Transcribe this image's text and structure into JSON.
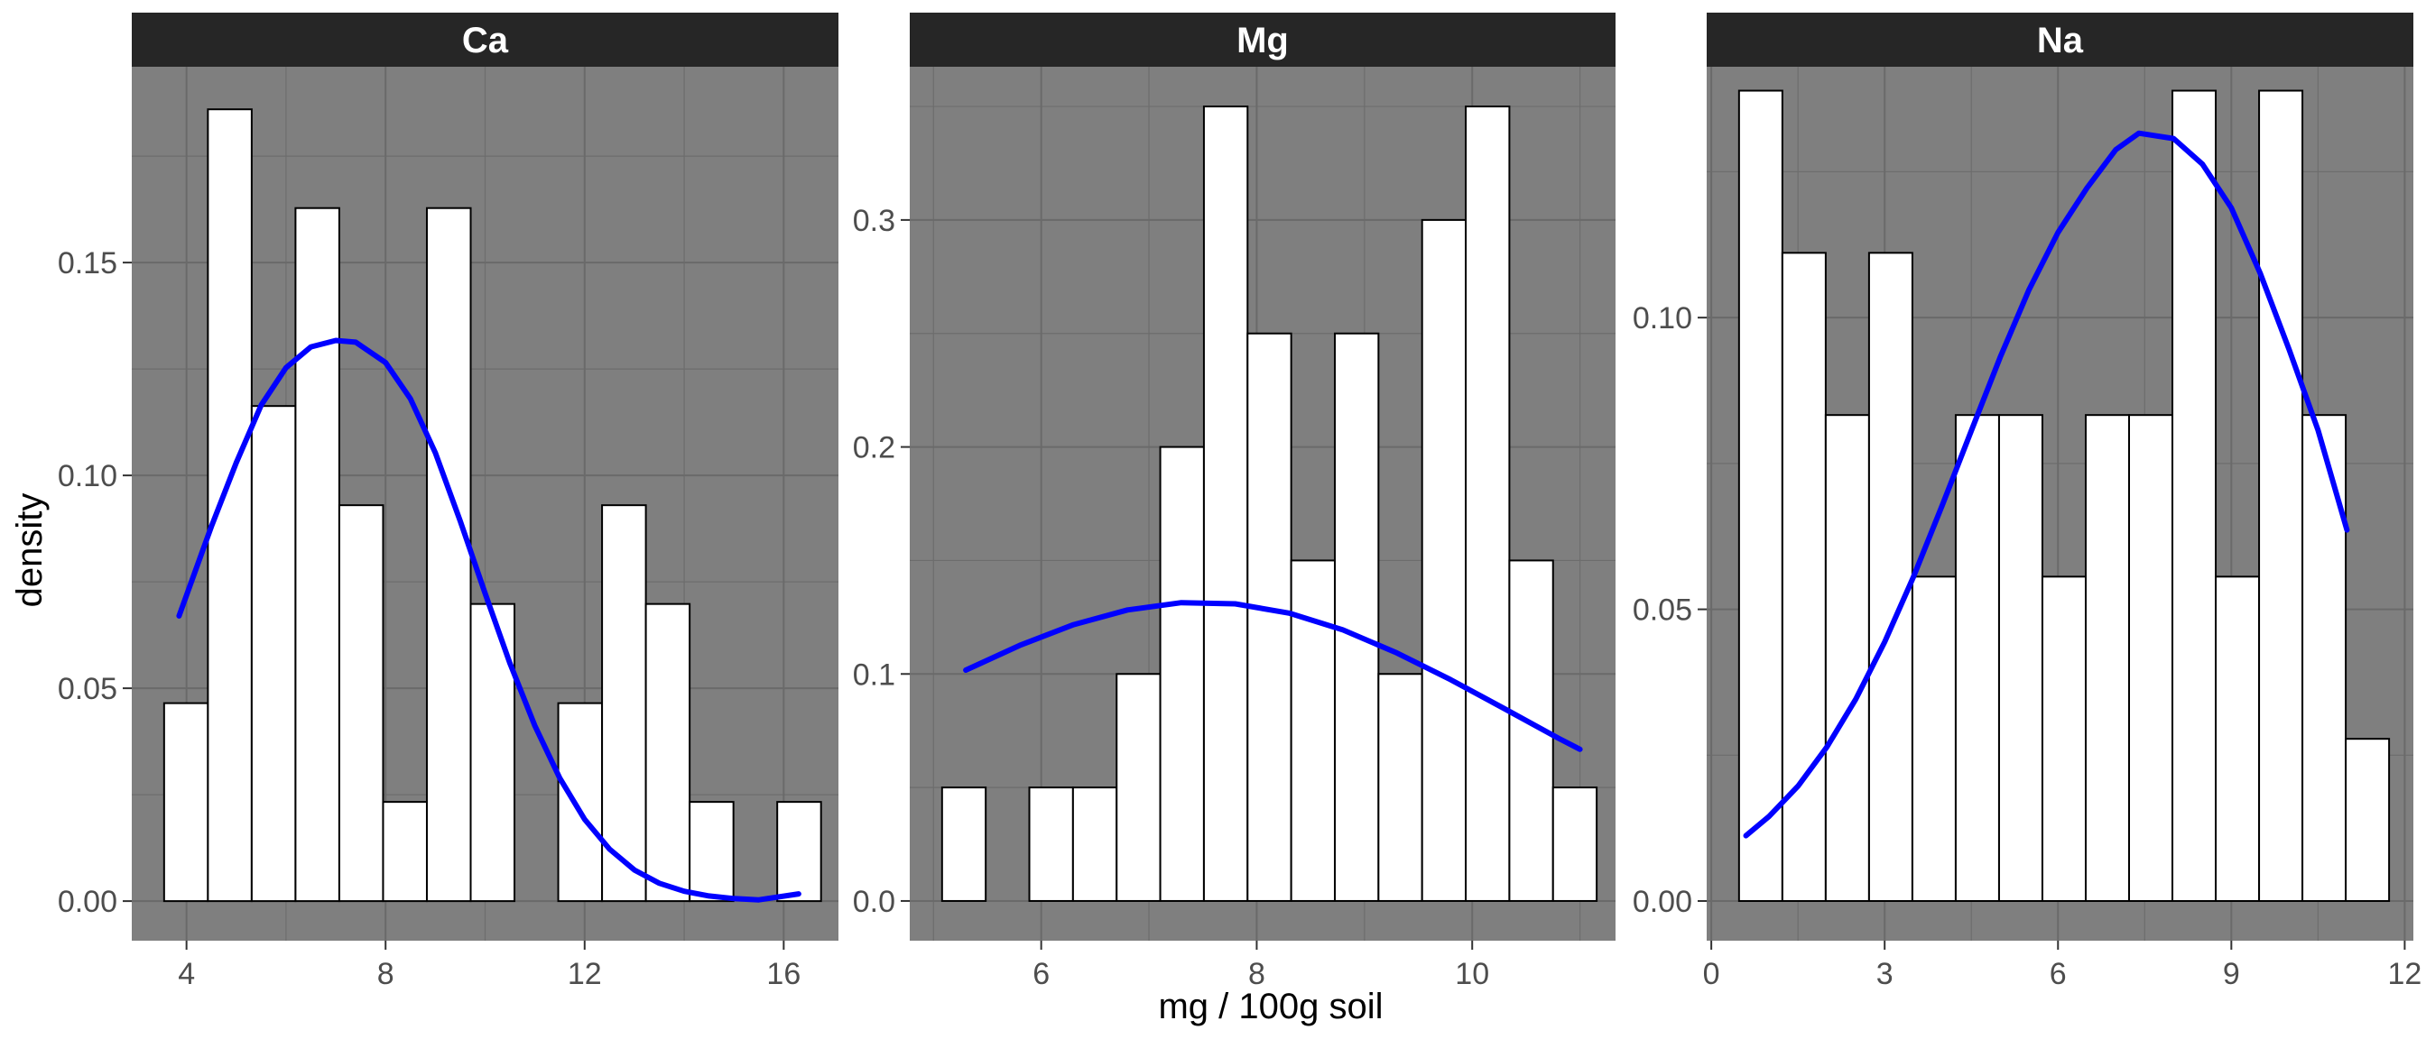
{
  "chart_data": {
    "type": "histogram",
    "facets": [
      {
        "panel": "Ca",
        "xlim": [
          2.9,
          17.1
        ],
        "ylim": [
          -0.0093,
          0.196
        ],
        "x_ticks": [
          4,
          8,
          12,
          16
        ],
        "x_tick_labels": [
          "4",
          "8",
          "12",
          "16"
        ],
        "y_ticks": [
          0,
          0.05,
          0.1,
          0.15
        ],
        "y_tick_labels": [
          "0.00",
          "0.05",
          "0.10",
          "0.15"
        ],
        "bin_edges": [
          3.55,
          4.43,
          5.31,
          6.19,
          7.07,
          7.95,
          8.83,
          9.71,
          10.59,
          11.47,
          12.35,
          13.23,
          14.11,
          14.99,
          15.87,
          16.75
        ],
        "bin_density": [
          0.0465,
          0.186,
          0.1163,
          0.1628,
          0.093,
          0.0233,
          0.1628,
          0.0698,
          0.0,
          0.0465,
          0.093,
          0.0698,
          0.0233,
          0.0,
          0.0233
        ],
        "curve": {
          "x": [
            3.85,
            4.5,
            5.0,
            5.5,
            6.0,
            6.5,
            7.0,
            7.4,
            8.0,
            8.5,
            9.0,
            9.5,
            10.0,
            10.5,
            11.0,
            11.5,
            12.0,
            12.5,
            13.0,
            13.5,
            14.0,
            14.5,
            15.0,
            15.5,
            16.3
          ],
          "y": [
            0.067,
            0.088,
            0.103,
            0.1165,
            0.1253,
            0.1302,
            0.1317,
            0.1313,
            0.1265,
            0.118,
            0.1053,
            0.0893,
            0.0723,
            0.0558,
            0.0412,
            0.0289,
            0.0192,
            0.0122,
            0.0073,
            0.0042,
            0.0023,
            0.0012,
            0.0006,
            0.0003,
            0.0017
          ]
        }
      },
      {
        "panel": "Mg",
        "xlim": [
          4.78,
          11.33
        ],
        "ylim": [
          -0.0175,
          0.3675
        ],
        "x_ticks": [
          6,
          8,
          10
        ],
        "x_tick_labels": [
          "6",
          "8",
          "10"
        ],
        "y_ticks": [
          0,
          0.1,
          0.2,
          0.3
        ],
        "y_tick_labels": [
          "0.0",
          "0.1",
          "0.2",
          "0.3"
        ],
        "bin_edges": [
          5.08,
          5.485,
          5.89,
          6.295,
          6.7,
          7.105,
          7.51,
          7.915,
          8.32,
          8.725,
          9.13,
          9.535,
          9.94,
          10.345,
          10.75,
          11.155
        ],
        "bin_density": [
          0.05,
          0.0,
          0.05,
          0.05,
          0.1,
          0.2,
          0.35,
          0.25,
          0.15,
          0.25,
          0.1,
          0.3,
          0.35,
          0.15,
          0.05
        ],
        "curve": {
          "x": [
            5.3,
            5.8,
            6.3,
            6.8,
            7.3,
            7.8,
            8.3,
            8.8,
            9.3,
            9.8,
            10.3,
            10.8,
            11.0
          ],
          "y": [
            0.1017,
            0.1126,
            0.1217,
            0.1282,
            0.1314,
            0.1309,
            0.1268,
            0.1194,
            0.1093,
            0.0975,
            0.0847,
            0.0717,
            0.0668
          ]
        }
      },
      {
        "panel": "Na",
        "xlim": [
          -0.08,
          12.15
        ],
        "ylim": [
          -0.0068,
          0.143
        ],
        "x_ticks": [
          0,
          3,
          6,
          9,
          12
        ],
        "x_tick_labels": [
          "0",
          "3",
          "6",
          "9",
          "12"
        ],
        "y_ticks": [
          0,
          0.05,
          0.1
        ],
        "y_tick_labels": [
          "0.00",
          "0.05",
          "0.10"
        ],
        "bin_edges": [
          0.48,
          1.23,
          1.98,
          2.73,
          3.48,
          4.23,
          4.98,
          5.73,
          6.48,
          7.23,
          7.98,
          8.73,
          9.48,
          10.23,
          10.98,
          11.73
        ],
        "bin_density": [
          0.1389,
          0.1111,
          0.0833,
          0.1111,
          0.0556,
          0.0833,
          0.0833,
          0.0556,
          0.0833,
          0.0833,
          0.1389,
          0.0556,
          0.1389,
          0.0833,
          0.0278
        ],
        "curve": {
          "x": [
            0.6,
            1.0,
            1.5,
            2.0,
            2.5,
            3.0,
            3.5,
            4.0,
            4.5,
            5.0,
            5.5,
            6.0,
            6.5,
            7.0,
            7.4,
            8.0,
            8.5,
            9.0,
            9.5,
            10.0,
            10.5,
            11.0
          ],
          "y": [
            0.0112,
            0.0145,
            0.0197,
            0.0264,
            0.0346,
            0.0444,
            0.0556,
            0.0679,
            0.0806,
            0.0932,
            0.1048,
            0.1146,
            0.1222,
            0.1288,
            0.1316,
            0.1307,
            0.1263,
            0.1188,
            0.1076,
            0.0945,
            0.0807,
            0.0636
          ]
        }
      }
    ],
    "xlabel": "mg / 100g soil",
    "ylabel": "density",
    "bar_fill": "#ffffff",
    "bar_stroke": "#000000",
    "curve_color": "#0000ff",
    "panel_background": "#7f7f7f",
    "strip_background": "#262626"
  }
}
